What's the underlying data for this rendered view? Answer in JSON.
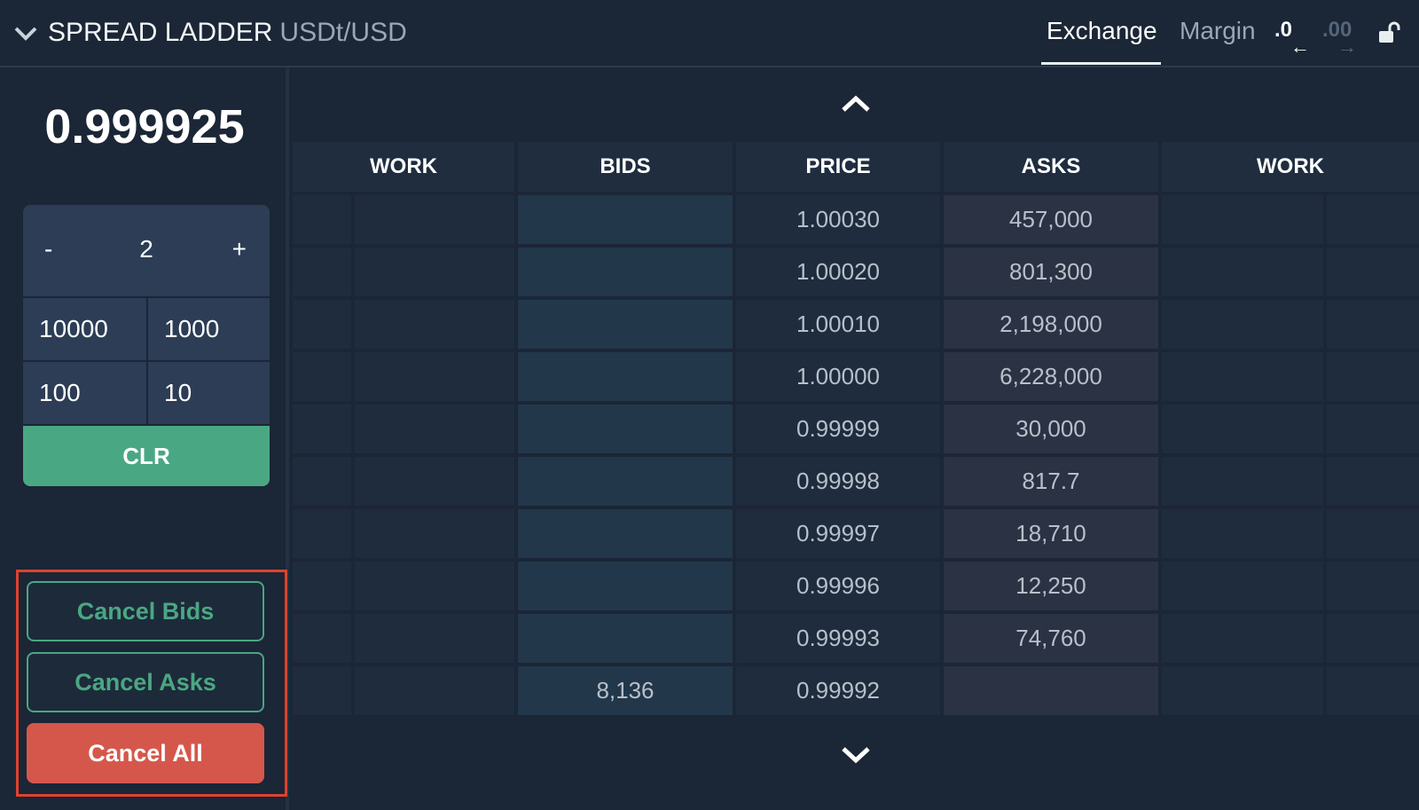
{
  "header": {
    "title": "SPREAD LADDER",
    "pair": "USDt/USD",
    "tabs": [
      {
        "label": "Exchange",
        "active": true
      },
      {
        "label": "Margin",
        "active": false
      }
    ],
    "precision_decrease_label": ".0",
    "precision_increase_label": ".00",
    "precision_decrease_arrow": "←",
    "precision_increase_arrow": "→",
    "icons": {
      "collapse": "chevron-down-icon",
      "lock": "unlock-icon"
    }
  },
  "sidebar": {
    "mid_price": "0.999925",
    "stepper": {
      "minus": "-",
      "value": "2",
      "plus": "+"
    },
    "presets": [
      "10000",
      "1000",
      "100",
      "10"
    ],
    "clear_label": "CLR",
    "cancel_bids_label": "Cancel Bids",
    "cancel_asks_label": "Cancel Asks",
    "cancel_all_label": "Cancel All"
  },
  "ladder": {
    "headers": [
      "WORK",
      "BIDS",
      "PRICE",
      "ASKS",
      "WORK"
    ],
    "rows": [
      {
        "bid": "",
        "price": "1.00030",
        "ask": "457,000"
      },
      {
        "bid": "",
        "price": "1.00020",
        "ask": "801,300"
      },
      {
        "bid": "",
        "price": "1.00010",
        "ask": "2,198,000"
      },
      {
        "bid": "",
        "price": "1.00000",
        "ask": "6,228,000"
      },
      {
        "bid": "",
        "price": "0.99999",
        "ask": "30,000"
      },
      {
        "bid": "",
        "price": "0.99998",
        "ask": "817.7"
      },
      {
        "bid": "",
        "price": "0.99997",
        "ask": "18,710"
      },
      {
        "bid": "",
        "price": "0.99996",
        "ask": "12,250"
      },
      {
        "bid": "",
        "price": "0.99993",
        "ask": "74,760"
      },
      {
        "bid": "8,136",
        "price": "0.99992",
        "ask": ""
      }
    ],
    "icons": {
      "scroll_up": "chevron-up-icon",
      "scroll_down": "chevron-down-icon"
    }
  },
  "colors": {
    "background": "#1b2636",
    "accent_green": "#4aa783",
    "cancel_red": "#d5574b",
    "highlight_border": "#e0412f"
  }
}
